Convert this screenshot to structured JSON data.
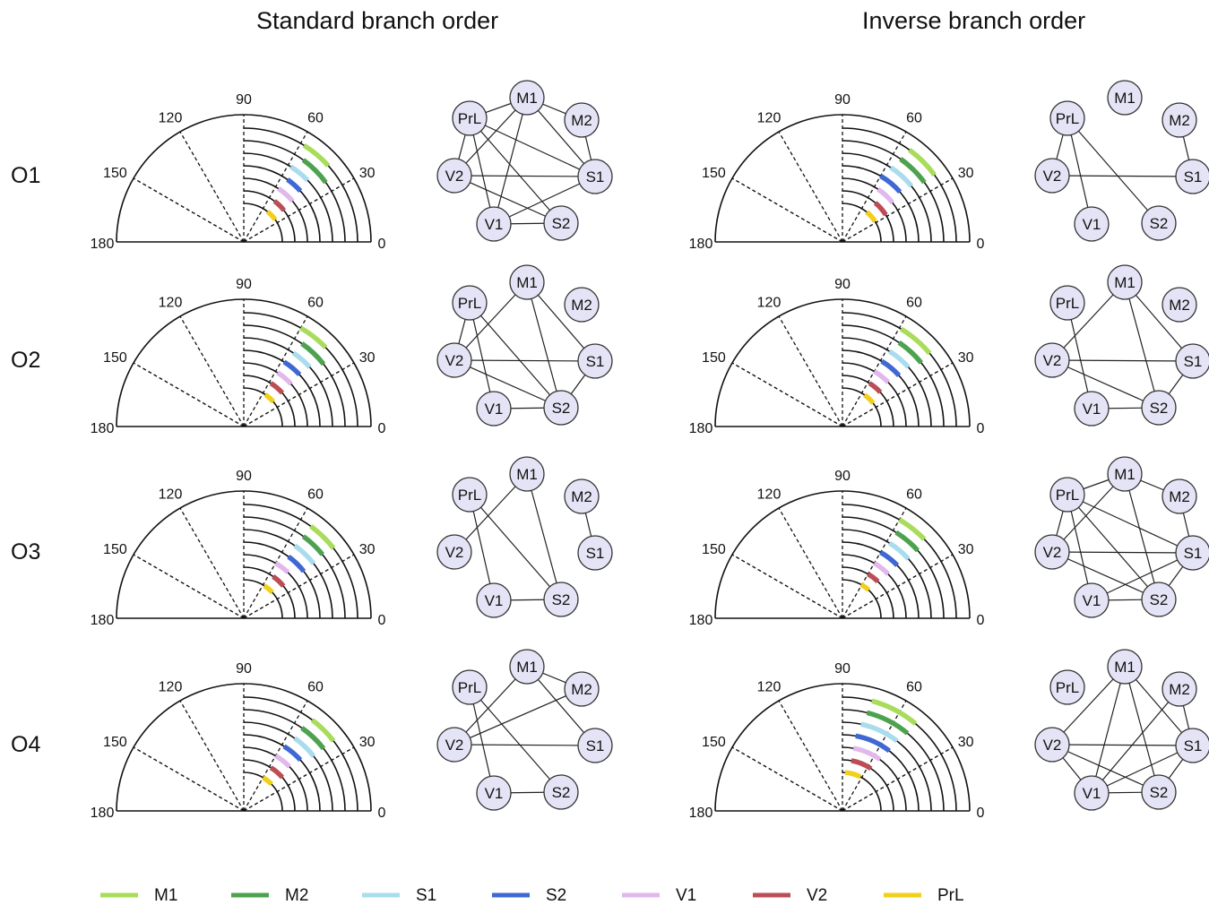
{
  "column_titles": [
    "Standard branch order",
    "Inverse branch order"
  ],
  "row_labels": [
    "O1",
    "O2",
    "O3",
    "O4"
  ],
  "polar_axis_labels": [
    "0",
    "30",
    "60",
    "90",
    "120",
    "150",
    "180"
  ],
  "regions": [
    {
      "name": "M1",
      "color": "#a8dc5a"
    },
    {
      "name": "M2",
      "color": "#4da24f"
    },
    {
      "name": "S1",
      "color": "#a9dcec"
    },
    {
      "name": "S2",
      "color": "#3f68d4"
    },
    {
      "name": "V1",
      "color": "#e2b8ec"
    },
    {
      "name": "V2",
      "color": "#bd4d55"
    },
    {
      "name": "PrL",
      "color": "#f2cf1a"
    }
  ],
  "node_style": {
    "fill": "#e4e4f6",
    "stroke": "#333333"
  },
  "graph_node_names": [
    "PrL",
    "M1",
    "M2",
    "V2",
    "S1",
    "V1",
    "S2"
  ],
  "panels": [
    {
      "row": "O1",
      "column": "Standard branch order",
      "arcs": [
        [
          42,
          58
        ],
        [
          36,
          54
        ],
        [
          44,
          58
        ],
        [
          42,
          55
        ],
        [
          40,
          57
        ],
        [
          38,
          53
        ],
        [
          35,
          52
        ]
      ],
      "edges": [
        [
          "PrL",
          "M1"
        ],
        [
          "PrL",
          "S1"
        ],
        [
          "PrL",
          "V1"
        ],
        [
          "PrL",
          "S2"
        ],
        [
          "M1",
          "M2"
        ],
        [
          "M1",
          "V2"
        ],
        [
          "M1",
          "V1"
        ],
        [
          "M1",
          "S1"
        ],
        [
          "M2",
          "S1"
        ],
        [
          "V2",
          "S1"
        ],
        [
          "V2",
          "S2"
        ],
        [
          "V2",
          "PrL"
        ],
        [
          "V1",
          "S2"
        ],
        [
          "S1",
          "V1"
        ]
      ]
    },
    {
      "row": "O1",
      "column": "Inverse branch order",
      "arcs": [
        [
          36,
          54
        ],
        [
          36,
          55
        ],
        [
          39,
          57
        ],
        [
          41,
          60
        ],
        [
          38,
          56
        ],
        [
          32,
          50
        ],
        [
          32,
          51
        ]
      ],
      "edges": [
        [
          "PrL",
          "V1"
        ],
        [
          "V2",
          "PrL"
        ],
        [
          "PrL",
          "S2"
        ],
        [
          "M2",
          "S1"
        ],
        [
          "V2",
          "S1"
        ]
      ]
    },
    {
      "row": "O2",
      "column": "Standard branch order",
      "arcs": [
        [
          44,
          60
        ],
        [
          38,
          55
        ],
        [
          42,
          56
        ],
        [
          43,
          58
        ],
        [
          42,
          58
        ],
        [
          41,
          58
        ],
        [
          40,
          56
        ]
      ],
      "edges": [
        [
          "PrL",
          "V2"
        ],
        [
          "PrL",
          "S2"
        ],
        [
          "M1",
          "V2"
        ],
        [
          "M1",
          "S2"
        ],
        [
          "M1",
          "S1"
        ],
        [
          "V2",
          "S1"
        ],
        [
          "V2",
          "S2"
        ],
        [
          "V1",
          "S2"
        ],
        [
          "V1",
          "PrL"
        ],
        [
          "S1",
          "S2"
        ]
      ]
    },
    {
      "row": "O2",
      "column": "Inverse branch order",
      "arcs": [
        [
          40,
          59
        ],
        [
          39,
          56
        ],
        [
          42,
          58
        ],
        [
          42,
          59
        ],
        [
          44,
          60
        ],
        [
          42,
          58
        ],
        [
          37,
          55
        ]
      ],
      "edges": [
        [
          "PrL",
          "V1"
        ],
        [
          "M1",
          "V2"
        ],
        [
          "M1",
          "S2"
        ],
        [
          "M1",
          "S1"
        ],
        [
          "V2",
          "S1"
        ],
        [
          "V2",
          "S2"
        ],
        [
          "V1",
          "S2"
        ],
        [
          "S1",
          "S2"
        ]
      ]
    },
    {
      "row": "O3",
      "column": "Standard branch order",
      "arcs": [
        [
          38,
          54
        ],
        [
          39,
          54
        ],
        [
          38,
          55
        ],
        [
          38,
          54
        ],
        [
          46,
          60
        ],
        [
          39,
          55
        ],
        [
          42,
          58
        ]
      ],
      "edges": [
        [
          "PrL",
          "S2"
        ],
        [
          "PrL",
          "V1"
        ],
        [
          "M1",
          "V2"
        ],
        [
          "M1",
          "S2"
        ],
        [
          "M2",
          "S1"
        ],
        [
          "V1",
          "S2"
        ]
      ]
    },
    {
      "row": "O3",
      "column": "Inverse branch order",
      "arcs": [
        [
          44,
          60
        ],
        [
          42,
          58
        ],
        [
          42,
          58
        ],
        [
          44,
          60
        ],
        [
          44,
          60
        ],
        [
          46,
          60
        ],
        [
          47,
          61
        ]
      ],
      "edges": [
        [
          "PrL",
          "M1"
        ],
        [
          "PrL",
          "V2"
        ],
        [
          "PrL",
          "V1"
        ],
        [
          "PrL",
          "S2"
        ],
        [
          "PrL",
          "S1"
        ],
        [
          "M1",
          "M2"
        ],
        [
          "M1",
          "V2"
        ],
        [
          "M1",
          "S2"
        ],
        [
          "M2",
          "S1"
        ],
        [
          "V2",
          "S1"
        ],
        [
          "V2",
          "S2"
        ],
        [
          "V1",
          "S2"
        ],
        [
          "S1",
          "V1"
        ],
        [
          "S1",
          "S2"
        ]
      ]
    },
    {
      "row": "O4",
      "column": "Standard branch order",
      "arcs": [
        [
          38,
          53
        ],
        [
          38,
          55
        ],
        [
          38,
          55
        ],
        [
          42,
          58
        ],
        [
          44,
          60
        ],
        [
          41,
          58
        ],
        [
          44,
          60
        ]
      ],
      "edges": [
        [
          "PrL",
          "V1"
        ],
        [
          "PrL",
          "S2"
        ],
        [
          "M1",
          "M2"
        ],
        [
          "M1",
          "V2"
        ],
        [
          "M1",
          "S1"
        ],
        [
          "M2",
          "V2"
        ],
        [
          "V2",
          "S1"
        ],
        [
          "V1",
          "S2"
        ]
      ]
    },
    {
      "row": "O4",
      "column": "Inverse branch order",
      "arcs": [
        [
          50,
          75
        ],
        [
          50,
          76
        ],
        [
          52,
          78
        ],
        [
          52,
          80
        ],
        [
          54,
          80
        ],
        [
          56,
          80
        ],
        [
          62,
          86
        ]
      ],
      "edges": [
        [
          "M1",
          "V2"
        ],
        [
          "M1",
          "V1"
        ],
        [
          "M1",
          "S2"
        ],
        [
          "M1",
          "S1"
        ],
        [
          "M2",
          "S1"
        ],
        [
          "M2",
          "V1"
        ],
        [
          "V2",
          "S1"
        ],
        [
          "V2",
          "S2"
        ],
        [
          "V2",
          "V1"
        ],
        [
          "V1",
          "S1"
        ],
        [
          "V1",
          "S2"
        ],
        [
          "S1",
          "S2"
        ]
      ]
    }
  ]
}
